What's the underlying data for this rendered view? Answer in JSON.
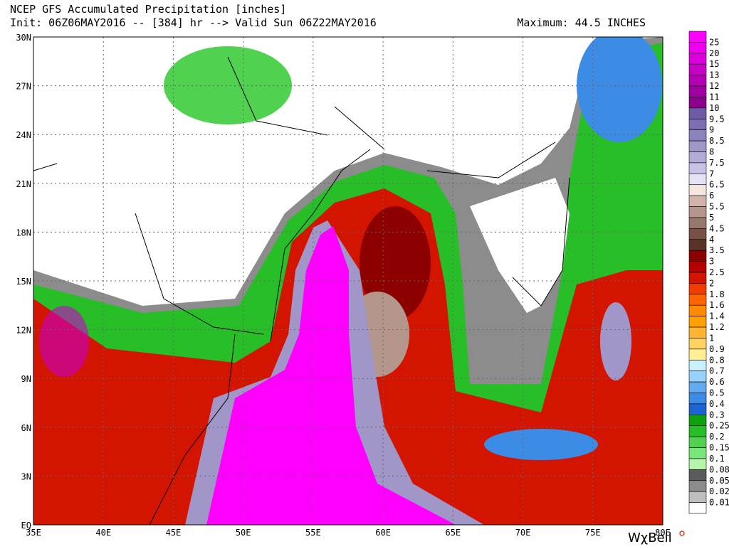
{
  "header": {
    "title": "NCEP GFS Accumulated Precipitation [inches]",
    "run": "Init: 06Z06MAY2016 -- [384] hr --> Valid Sun 06Z22MAY2016",
    "maximum": "Maximum: 44.5 INCHES"
  },
  "map": {
    "lat_labels": [
      "30N",
      "27N",
      "24N",
      "21N",
      "18N",
      "15N",
      "12N",
      "9N",
      "6N",
      "3N",
      "EQ"
    ],
    "lon_labels": [
      "35E",
      "40E",
      "45E",
      "50E",
      "55E",
      "60E",
      "65E",
      "70E",
      "75E",
      "80E"
    ]
  },
  "colorbar": {
    "labels": [
      "25",
      "20",
      "15",
      "13",
      "12",
      "11",
      "10",
      "9.5",
      "9",
      "8.5",
      "8",
      "7.5",
      "7",
      "6.5",
      "6",
      "5.5",
      "5",
      "4.5",
      "4",
      "3.5",
      "3",
      "2.5",
      "2",
      "1.8",
      "1.6",
      "1.4",
      "1.2",
      "1",
      "0.9",
      "0.8",
      "0.7",
      "0.6",
      "0.5",
      "0.4",
      "0.3",
      "0.25",
      "0.2",
      "0.15",
      "0.1",
      "0.08",
      "0.05",
      "0.02",
      "0.01"
    ],
    "colors": [
      "#ff00ff",
      "#f000f0",
      "#dc00dc",
      "#c800c8",
      "#b400b4",
      "#a000a0",
      "#8c008c",
      "#6e5aa5",
      "#7d6eb4",
      "#8c82be",
      "#a096c8",
      "#b4aad7",
      "#c8c3e6",
      "#e6e1f5",
      "#f5e6e1",
      "#d2b4aa",
      "#b4968c",
      "#96786e",
      "#785046",
      "#5a3228",
      "#8c0000",
      "#b40000",
      "#d21400",
      "#f03c00",
      "#ff6400",
      "#ff8c00",
      "#ffa000",
      "#ffb432",
      "#ffd264",
      "#fff096",
      "#c8f0ff",
      "#96d2fa",
      "#64aaf0",
      "#3c8ce6",
      "#1e64d2",
      "#0fa00f",
      "#28be28",
      "#50d250",
      "#78e678",
      "#b4f5aa",
      "#5a5a5a",
      "#8c8c8c",
      "#bebebe",
      "#ffffff"
    ]
  },
  "watermark": "WχBell"
}
